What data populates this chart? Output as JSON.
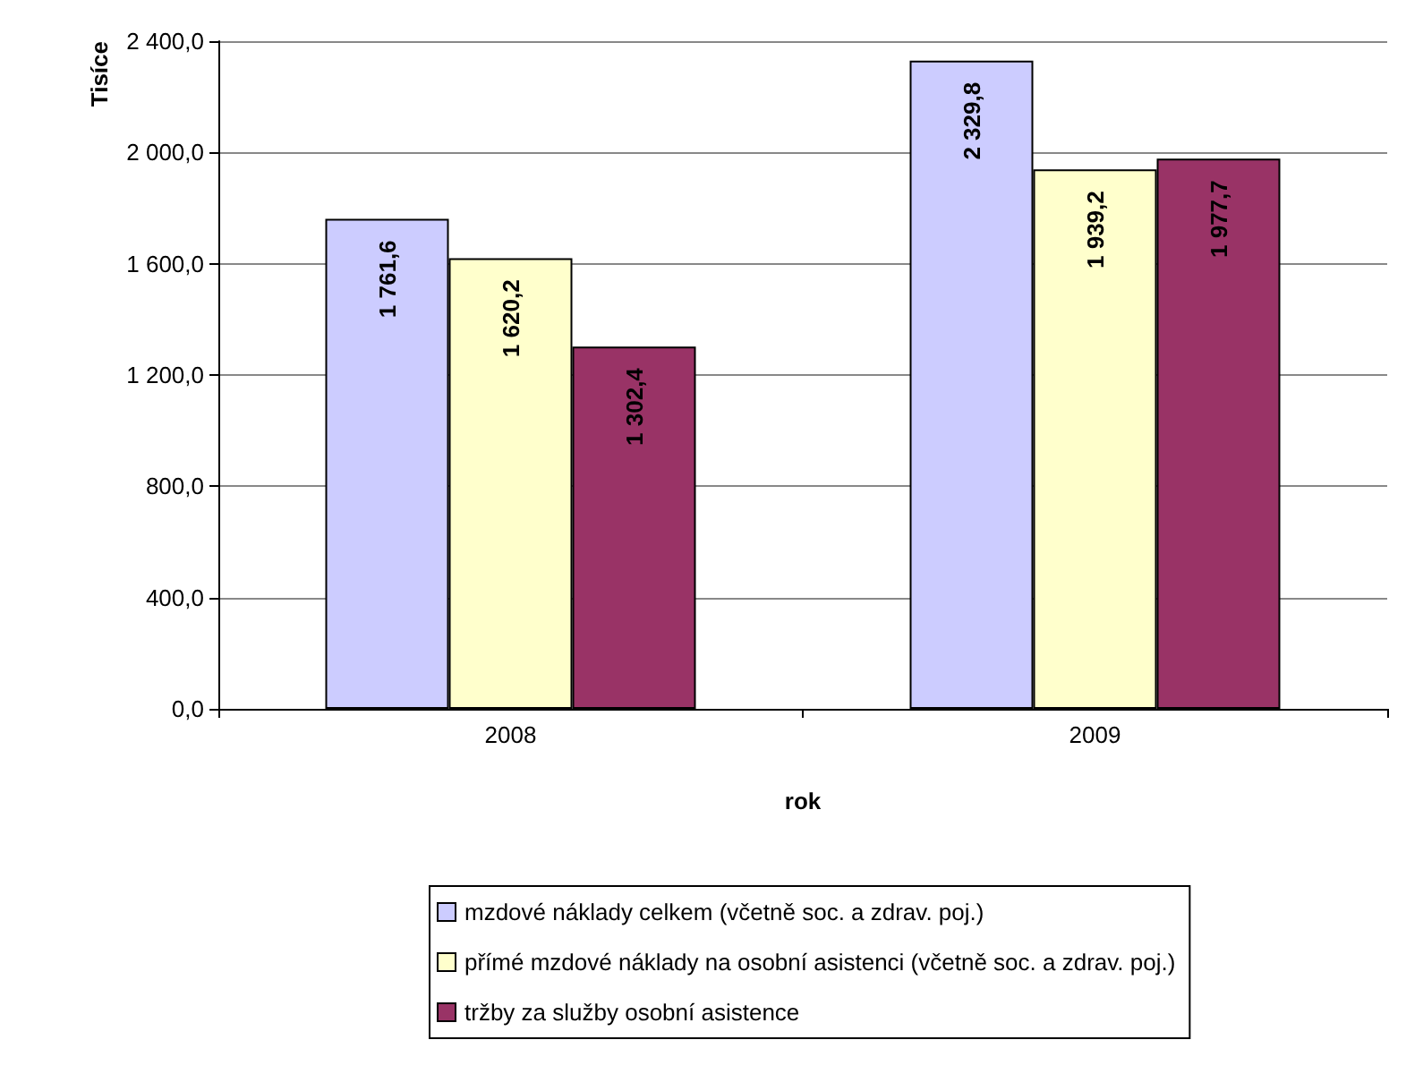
{
  "chart_data": {
    "type": "bar",
    "xlabel": "rok",
    "ylabel": "Tisíce",
    "categories": [
      "2008",
      "2009"
    ],
    "series": [
      {
        "name": "mzdové náklady celkem (včetně soc. a zdrav. poj.)",
        "color": "#ccccff",
        "values": [
          1761.6,
          2329.8
        ],
        "value_labels": [
          "1 761,6",
          "2 329,8"
        ]
      },
      {
        "name": "přímé mzdové náklady na osobní asistenci (včetně soc. a zdrav. poj.)",
        "color": "#ffffcc",
        "values": [
          1620.2,
          1939.2
        ],
        "value_labels": [
          "1 620,2",
          "1 939,2"
        ]
      },
      {
        "name": "tržby za služby osobní asistence",
        "color": "#993366",
        "values": [
          1302.4,
          1977.7
        ],
        "value_labels": [
          "1 302,4",
          "1 977,7"
        ]
      }
    ],
    "ylim": [
      0,
      2400
    ],
    "yticks": [
      {
        "value": 0,
        "label": "0,0"
      },
      {
        "value": 400,
        "label": "400,0"
      },
      {
        "value": 800,
        "label": "800,0"
      },
      {
        "value": 1200,
        "label": "1 200,0"
      },
      {
        "value": 1600,
        "label": "1 600,0"
      },
      {
        "value": 2000,
        "label": "2 000,0"
      },
      {
        "value": 2400,
        "label": "2 400,0"
      }
    ],
    "grid": "y",
    "legend": "bottom"
  }
}
